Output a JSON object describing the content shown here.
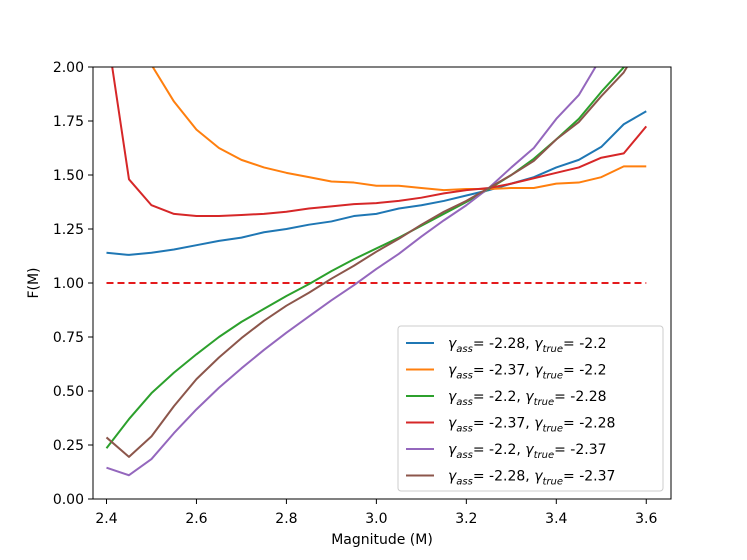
{
  "chart_data": {
    "type": "line",
    "title": "",
    "xlabel": "Magnitude (M)",
    "ylabel": "F(M)",
    "xlim": [
      2.37,
      3.655
    ],
    "ylim": [
      0.0,
      2.0
    ],
    "xticks": [
      "2.4",
      "2.6",
      "2.8",
      "3.0",
      "3.2",
      "3.4",
      "3.6"
    ],
    "yticks": [
      "0.00",
      "0.25",
      "0.50",
      "0.75",
      "1.00",
      "1.25",
      "1.50",
      "1.75",
      "2.00"
    ],
    "grid": false,
    "legend_position": "lower-right",
    "series": [
      {
        "legend": {
          "g_ass": "-2.28",
          "g_true": "-2.2"
        },
        "color": "#1f77b4",
        "points": [
          [
            2.4,
            1.14
          ],
          [
            2.45,
            1.13
          ],
          [
            2.5,
            1.14
          ],
          [
            2.55,
            1.155
          ],
          [
            2.6,
            1.175
          ],
          [
            2.65,
            1.195
          ],
          [
            2.7,
            1.21
          ],
          [
            2.75,
            1.235
          ],
          [
            2.8,
            1.25
          ],
          [
            2.85,
            1.27
          ],
          [
            2.9,
            1.285
          ],
          [
            2.95,
            1.31
          ],
          [
            3.0,
            1.32
          ],
          [
            3.05,
            1.345
          ],
          [
            3.1,
            1.36
          ],
          [
            3.15,
            1.38
          ],
          [
            3.2,
            1.405
          ],
          [
            3.25,
            1.43
          ],
          [
            3.3,
            1.46
          ],
          [
            3.35,
            1.49
          ],
          [
            3.4,
            1.535
          ],
          [
            3.45,
            1.57
          ],
          [
            3.5,
            1.63
          ],
          [
            3.55,
            1.735
          ],
          [
            3.6,
            1.795
          ]
        ]
      },
      {
        "legend": {
          "g_ass": "-2.37",
          "g_true": "-2.2"
        },
        "color": "#ff7f0e",
        "points": [
          [
            2.5,
            2.01
          ],
          [
            2.55,
            1.84
          ],
          [
            2.6,
            1.71
          ],
          [
            2.65,
            1.625
          ],
          [
            2.7,
            1.57
          ],
          [
            2.75,
            1.535
          ],
          [
            2.8,
            1.51
          ],
          [
            2.85,
            1.49
          ],
          [
            2.9,
            1.47
          ],
          [
            2.95,
            1.465
          ],
          [
            3.0,
            1.45
          ],
          [
            3.05,
            1.45
          ],
          [
            3.1,
            1.44
          ],
          [
            3.15,
            1.43
          ],
          [
            3.2,
            1.435
          ],
          [
            3.25,
            1.435
          ],
          [
            3.3,
            1.44
          ],
          [
            3.35,
            1.44
          ],
          [
            3.4,
            1.46
          ],
          [
            3.45,
            1.465
          ],
          [
            3.5,
            1.49
          ],
          [
            3.55,
            1.54
          ],
          [
            3.6,
            1.54
          ]
        ]
      },
      {
        "legend": {
          "g_ass": "-2.2",
          "g_true": "-2.28"
        },
        "color": "#2ca02c",
        "points": [
          [
            2.4,
            0.235
          ],
          [
            2.45,
            0.37
          ],
          [
            2.5,
            0.49
          ],
          [
            2.55,
            0.585
          ],
          [
            2.6,
            0.67
          ],
          [
            2.65,
            0.75
          ],
          [
            2.7,
            0.82
          ],
          [
            2.75,
            0.88
          ],
          [
            2.8,
            0.94
          ],
          [
            2.85,
            0.995
          ],
          [
            2.9,
            1.055
          ],
          [
            2.95,
            1.11
          ],
          [
            3.0,
            1.16
          ],
          [
            3.05,
            1.21
          ],
          [
            3.1,
            1.265
          ],
          [
            3.15,
            1.32
          ],
          [
            3.2,
            1.375
          ],
          [
            3.25,
            1.435
          ],
          [
            3.3,
            1.5
          ],
          [
            3.35,
            1.575
          ],
          [
            3.4,
            1.665
          ],
          [
            3.45,
            1.76
          ],
          [
            3.5,
            1.885
          ],
          [
            3.555,
            2.01
          ]
        ]
      },
      {
        "legend": {
          "g_ass": "-2.37",
          "g_true": "-2.28"
        },
        "color": "#d62728",
        "points": [
          [
            2.412,
            2.01
          ],
          [
            2.45,
            1.48
          ],
          [
            2.5,
            1.36
          ],
          [
            2.55,
            1.32
          ],
          [
            2.6,
            1.31
          ],
          [
            2.65,
            1.31
          ],
          [
            2.7,
            1.315
          ],
          [
            2.75,
            1.32
          ],
          [
            2.8,
            1.33
          ],
          [
            2.85,
            1.345
          ],
          [
            2.9,
            1.355
          ],
          [
            2.95,
            1.365
          ],
          [
            3.0,
            1.37
          ],
          [
            3.05,
            1.38
          ],
          [
            3.1,
            1.395
          ],
          [
            3.15,
            1.415
          ],
          [
            3.2,
            1.43
          ],
          [
            3.25,
            1.44
          ],
          [
            3.3,
            1.46
          ],
          [
            3.35,
            1.485
          ],
          [
            3.4,
            1.51
          ],
          [
            3.45,
            1.535
          ],
          [
            3.5,
            1.58
          ],
          [
            3.55,
            1.6
          ],
          [
            3.6,
            1.725
          ]
        ]
      },
      {
        "legend": {
          "g_ass": "-2.2",
          "g_true": "-2.37"
        },
        "color": "#9467bd",
        "points": [
          [
            2.4,
            0.145
          ],
          [
            2.45,
            0.11
          ],
          [
            2.5,
            0.185
          ],
          [
            2.55,
            0.305
          ],
          [
            2.6,
            0.415
          ],
          [
            2.65,
            0.515
          ],
          [
            2.7,
            0.605
          ],
          [
            2.75,
            0.69
          ],
          [
            2.8,
            0.77
          ],
          [
            2.85,
            0.845
          ],
          [
            2.9,
            0.92
          ],
          [
            2.95,
            0.99
          ],
          [
            3.0,
            1.065
          ],
          [
            3.05,
            1.135
          ],
          [
            3.1,
            1.215
          ],
          [
            3.15,
            1.29
          ],
          [
            3.2,
            1.36
          ],
          [
            3.25,
            1.44
          ],
          [
            3.3,
            1.535
          ],
          [
            3.35,
            1.625
          ],
          [
            3.4,
            1.76
          ],
          [
            3.45,
            1.87
          ],
          [
            3.49,
            2.01
          ]
        ]
      },
      {
        "legend": {
          "g_ass": "-2.28",
          "g_true": "-2.37"
        },
        "color": "#8c564b",
        "points": [
          [
            2.4,
            0.285
          ],
          [
            2.45,
            0.195
          ],
          [
            2.5,
            0.29
          ],
          [
            2.55,
            0.43
          ],
          [
            2.6,
            0.555
          ],
          [
            2.65,
            0.655
          ],
          [
            2.7,
            0.745
          ],
          [
            2.75,
            0.825
          ],
          [
            2.8,
            0.895
          ],
          [
            2.85,
            0.955
          ],
          [
            2.9,
            1.02
          ],
          [
            2.95,
            1.08
          ],
          [
            3.0,
            1.145
          ],
          [
            3.05,
            1.205
          ],
          [
            3.1,
            1.27
          ],
          [
            3.15,
            1.33
          ],
          [
            3.2,
            1.38
          ],
          [
            3.25,
            1.44
          ],
          [
            3.3,
            1.5
          ],
          [
            3.35,
            1.565
          ],
          [
            3.4,
            1.665
          ],
          [
            3.45,
            1.745
          ],
          [
            3.5,
            1.865
          ],
          [
            3.55,
            1.975
          ],
          [
            3.56,
            2.01
          ]
        ]
      }
    ],
    "reference_line": {
      "y": 1.0,
      "x": [
        2.4,
        3.6
      ],
      "color": "#e41a1c",
      "style": "dashed"
    }
  }
}
